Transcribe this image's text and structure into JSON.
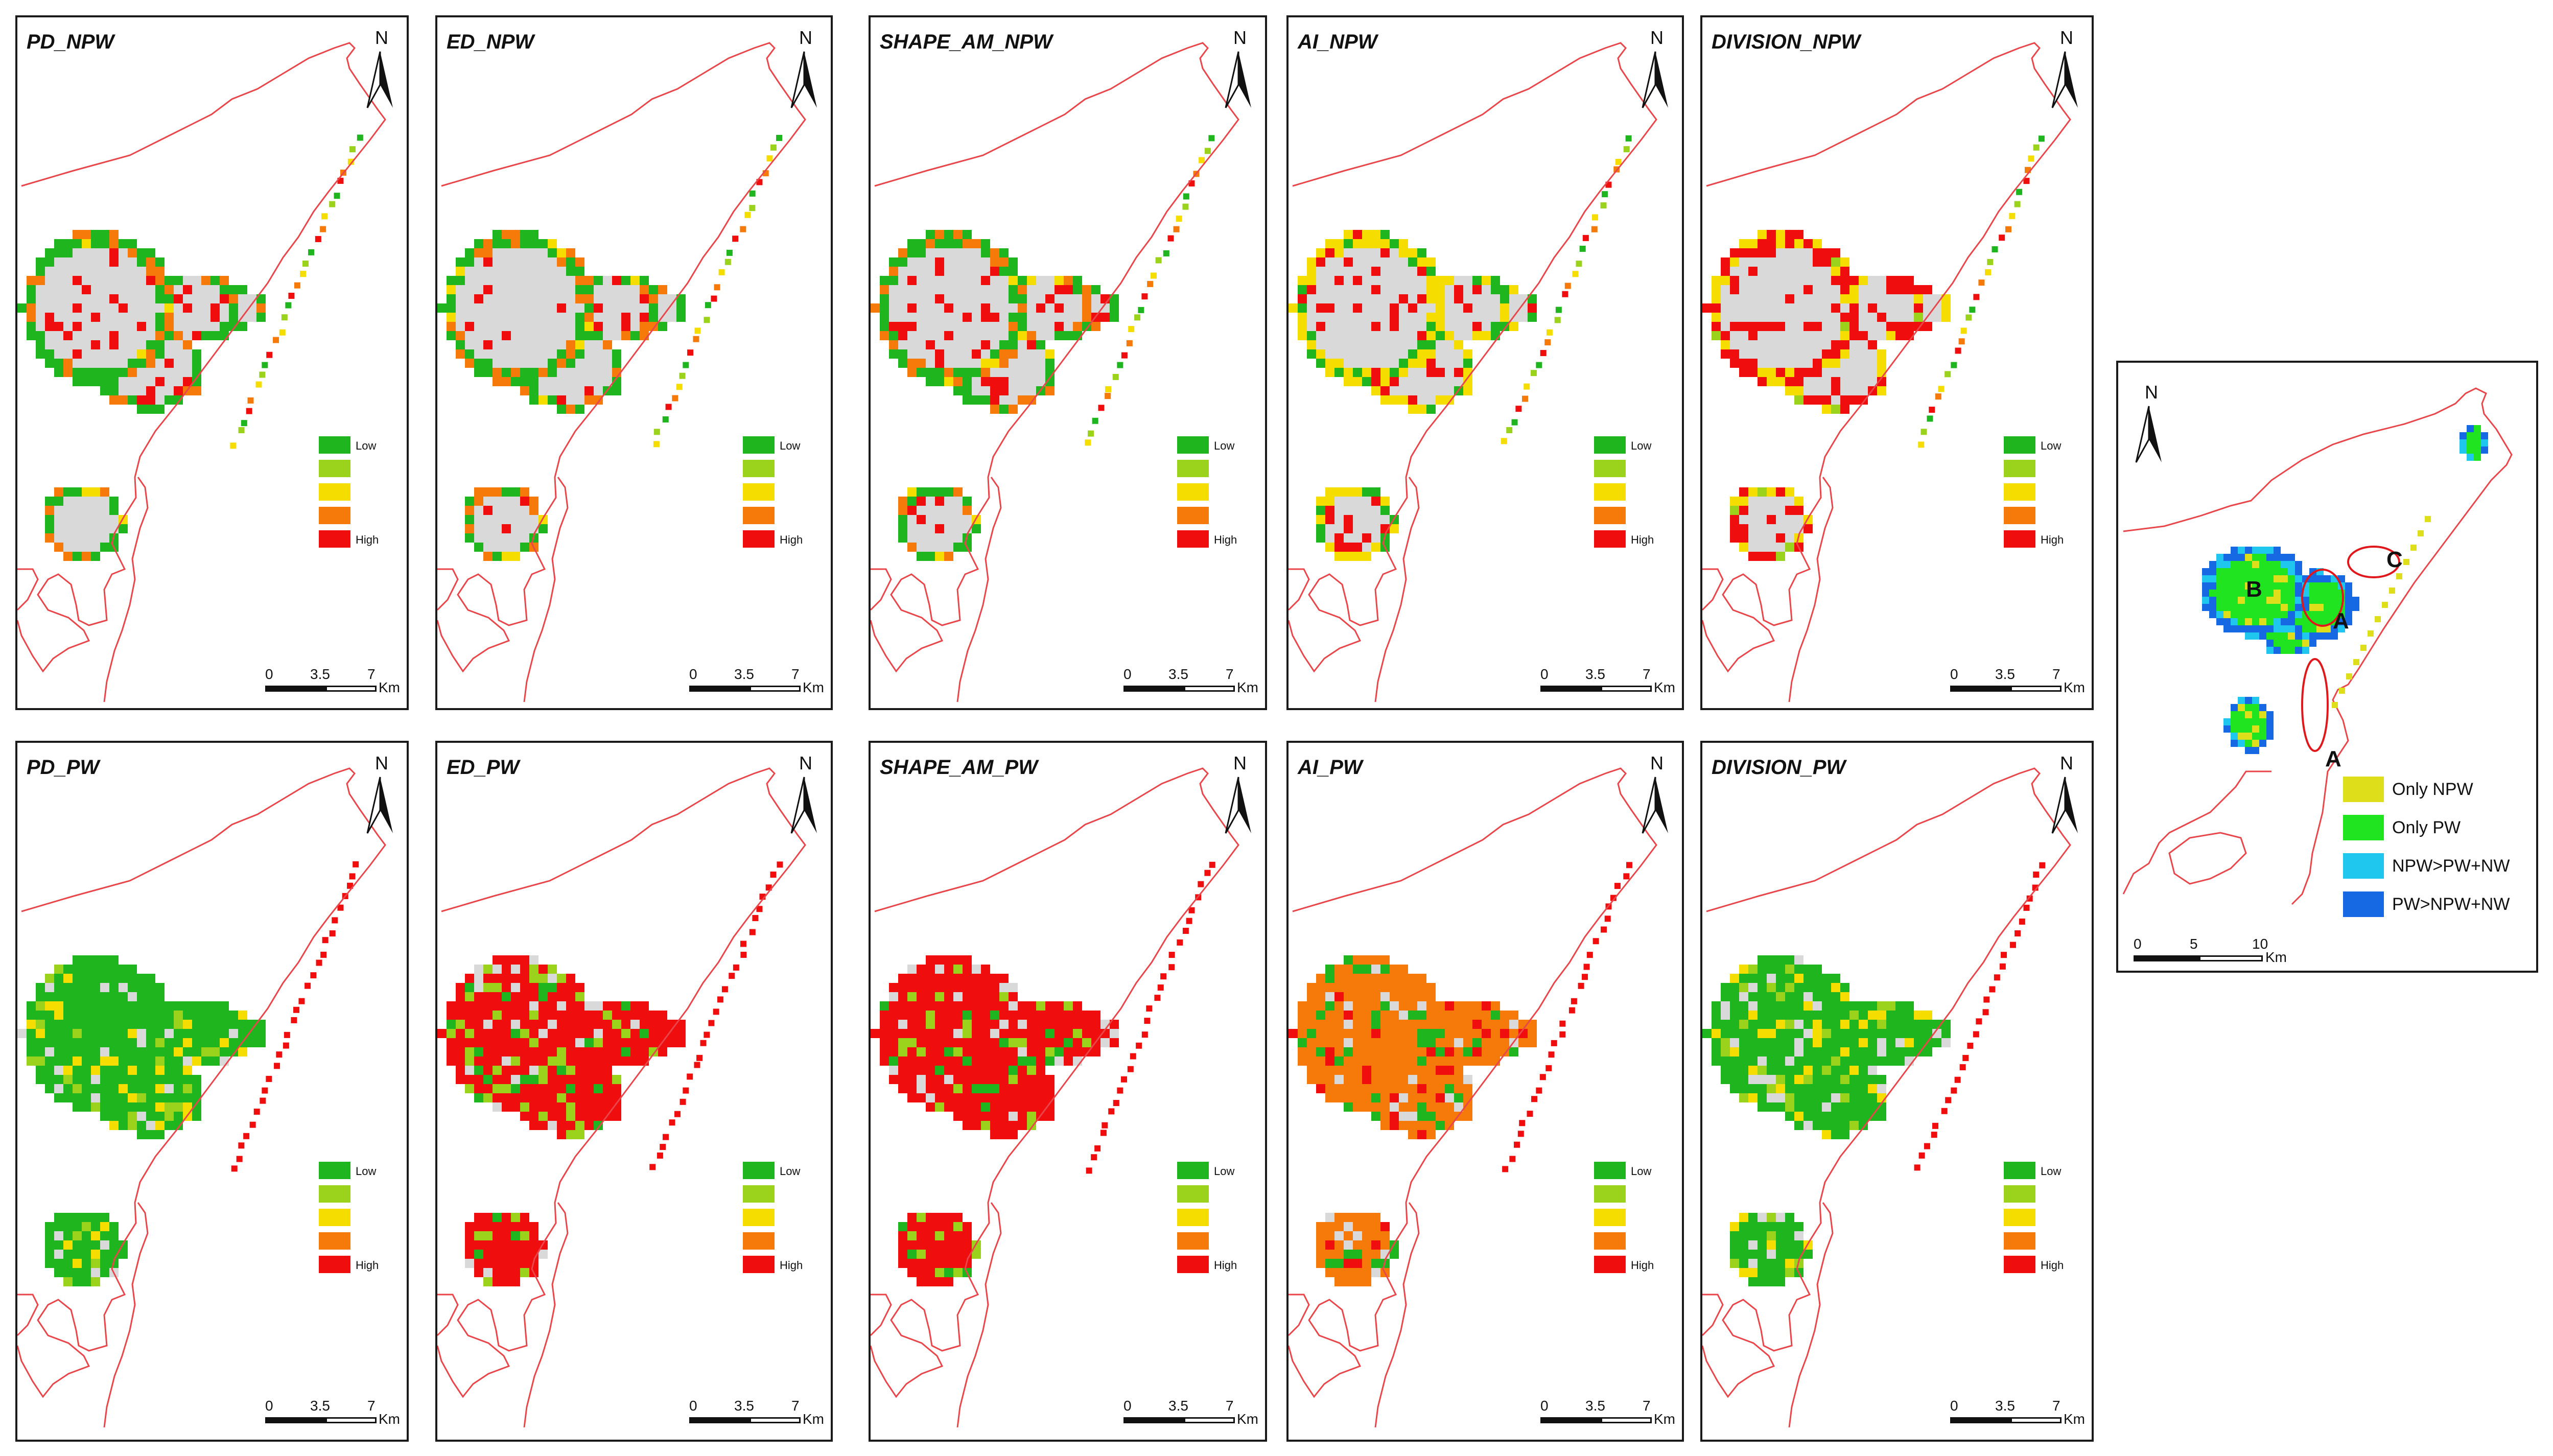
{
  "panels": [
    {
      "title": "PD_NPW",
      "scheme": "npw_pd"
    },
    {
      "title": "ED_NPW",
      "scheme": "npw_ed"
    },
    {
      "title": "SHAPE_AM_NPW",
      "scheme": "npw_shape"
    },
    {
      "title": "AI_NPW",
      "scheme": "npw_ai"
    },
    {
      "title": "DIVISION_NPW",
      "scheme": "npw_div"
    },
    {
      "title": "PD_PW",
      "scheme": "pw_pd"
    },
    {
      "title": "ED_PW",
      "scheme": "pw_ed"
    },
    {
      "title": "SHAPE_AM_PW",
      "scheme": "pw_shape"
    },
    {
      "title": "AI_PW",
      "scheme": "pw_ai"
    },
    {
      "title": "DIVISION_PW",
      "scheme": "pw_div"
    }
  ],
  "north_label": "N",
  "legend": {
    "low_label": "Low",
    "high_label": "High",
    "colors": [
      "#1fb51f",
      "#9ad21c",
      "#f5dd00",
      "#f57a0a",
      "#f00d0d"
    ]
  },
  "scalebar": {
    "ticks": [
      "0",
      "3.5",
      "7"
    ],
    "unit": "Km"
  },
  "summary": {
    "north_label": "N",
    "markers": [
      "B",
      "C",
      "A",
      "A"
    ],
    "legend": [
      {
        "label": "Only NPW",
        "color": "#dede1a"
      },
      {
        "label": "Only PW",
        "color": "#21e421"
      },
      {
        "label": "NPW>PW+NW",
        "color": "#1fc6ee"
      },
      {
        "label": "PW>NPW+NW",
        "color": "#1668e3"
      }
    ],
    "scalebar": {
      "ticks": [
        "0",
        "5",
        "10"
      ],
      "unit": "Km"
    }
  },
  "colors": {
    "boundary": "#e8464a",
    "gray": "#d9d9d9",
    "frame": "#1a1a1a"
  }
}
